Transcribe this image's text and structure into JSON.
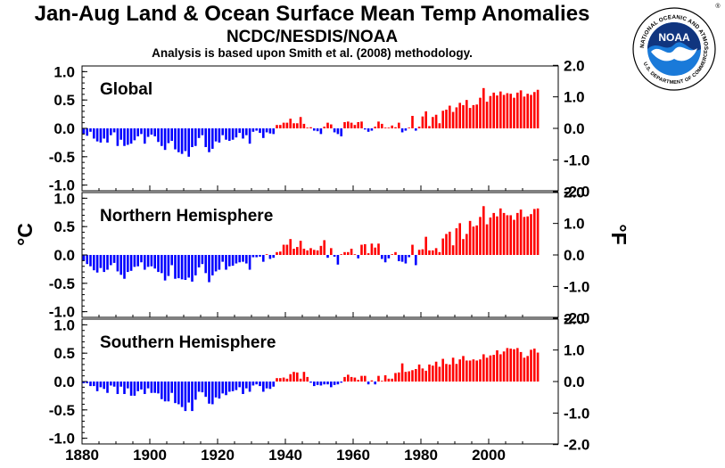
{
  "header": {
    "title": "Jan-Aug Land & Ocean Surface Mean Temp Anomalies",
    "subtitle": "NCDC/NESDIS/NOAA",
    "note": "Analysis is based upon Smith et al. (2008) methodology."
  },
  "logo": {
    "text": "NOAA",
    "ring_text": "NATIONAL OCEANIC AND ATMOSPHERIC ADMINISTRATION",
    "bottom_text": "U.S. DEPARTMENT OF COMMERCE",
    "registered": "®"
  },
  "colors": {
    "positive": "#ff0000",
    "negative": "#0000ff",
    "logo_blue": "#1a7ad9",
    "logo_navy": "#10357f"
  },
  "chart_data": [
    {
      "type": "bar",
      "panel": "Global",
      "ylabel_left": "°C",
      "ylabel_right": "°F",
      "ylim": [
        -1.1,
        1.1
      ],
      "yticks_c": [
        "1.0",
        "0.5",
        "0.0",
        "-0.5",
        "-1.0"
      ],
      "yticks_f": [
        "2.0",
        "1.0",
        "0.0",
        "-1.0",
        "-2.0"
      ],
      "xticks": [
        "1880",
        "1900",
        "1920",
        "1940",
        "1960",
        "1980",
        "2000"
      ],
      "x_start": 1880,
      "x_end": 2014,
      "values": [
        -0.1,
        -0.13,
        -0.06,
        -0.18,
        -0.23,
        -0.25,
        -0.18,
        -0.25,
        -0.12,
        -0.07,
        -0.31,
        -0.2,
        -0.31,
        -0.29,
        -0.27,
        -0.21,
        -0.14,
        -0.1,
        -0.27,
        -0.15,
        -0.11,
        -0.14,
        -0.24,
        -0.31,
        -0.38,
        -0.26,
        -0.22,
        -0.37,
        -0.42,
        -0.45,
        -0.4,
        -0.5,
        -0.33,
        -0.31,
        -0.17,
        -0.12,
        -0.33,
        -0.42,
        -0.36,
        -0.23,
        -0.25,
        -0.12,
        -0.2,
        -0.22,
        -0.2,
        -0.16,
        -0.08,
        -0.18,
        -0.12,
        -0.27,
        -0.06,
        -0.04,
        -0.08,
        -0.17,
        -0.07,
        -0.09,
        -0.1,
        0.06,
        0.06,
        0.1,
        0.1,
        0.17,
        0.09,
        0.09,
        0.2,
        0.08,
        0.0,
        0.02,
        -0.04,
        -0.05,
        -0.1,
        0.03,
        0.1,
        0.07,
        -0.07,
        -0.1,
        -0.14,
        0.11,
        0.12,
        0.1,
        0.06,
        0.11,
        0.12,
        -0.02,
        -0.06,
        -0.04,
        0.03,
        0.12,
        0.08,
        0.0,
        0.0,
        0.05,
        0.02,
        0.1,
        -0.07,
        -0.04,
        0.0,
        0.22,
        -0.04,
        0.03,
        0.21,
        0.3,
        0.04,
        0.2,
        0.24,
        0.09,
        0.31,
        0.33,
        0.4,
        0.29,
        0.37,
        0.45,
        0.41,
        0.5,
        0.36,
        0.41,
        0.42,
        0.54,
        0.71,
        0.47,
        0.57,
        0.63,
        0.58,
        0.65,
        0.59,
        0.62,
        0.61,
        0.54,
        0.63,
        0.67,
        0.56,
        0.61,
        0.59,
        0.64,
        0.68
      ]
    },
    {
      "type": "bar",
      "panel": "Northern Hemisphere",
      "ylabel_left": "°C",
      "ylabel_right": "°F",
      "ylim": [
        -1.1,
        1.1
      ],
      "yticks_c": [
        "1.0",
        "0.5",
        "0.0",
        "-0.5",
        "-1.0"
      ],
      "yticks_f": [
        "2.0",
        "1.0",
        "0.0",
        "-1.0",
        "-2.0"
      ],
      "xticks": [
        "1880",
        "1900",
        "1920",
        "1940",
        "1960",
        "1980",
        "2000"
      ],
      "x_start": 1880,
      "x_end": 2014,
      "values": [
        -0.1,
        -0.16,
        -0.2,
        -0.27,
        -0.31,
        -0.23,
        -0.3,
        -0.26,
        -0.18,
        -0.14,
        -0.29,
        -0.35,
        -0.42,
        -0.3,
        -0.28,
        -0.21,
        -0.2,
        -0.13,
        -0.26,
        -0.21,
        -0.2,
        -0.24,
        -0.3,
        -0.32,
        -0.45,
        -0.37,
        -0.18,
        -0.42,
        -0.41,
        -0.43,
        -0.44,
        -0.4,
        -0.47,
        -0.36,
        -0.22,
        -0.16,
        -0.32,
        -0.48,
        -0.36,
        -0.29,
        -0.26,
        -0.12,
        -0.26,
        -0.2,
        -0.19,
        -0.15,
        -0.13,
        -0.12,
        -0.15,
        -0.26,
        -0.04,
        -0.04,
        -0.03,
        -0.12,
        0.0,
        -0.07,
        -0.05,
        0.05,
        0.06,
        0.18,
        0.18,
        0.28,
        0.11,
        0.14,
        0.25,
        0.11,
        0.08,
        0.12,
        0.09,
        0.08,
        0.16,
        0.26,
        -0.05,
        0.12,
        -0.03,
        -0.17,
        0.0,
        0.05,
        0.05,
        0.11,
        0.0,
        -0.06,
        0.18,
        0.19,
        0.03,
        0.2,
        0.13,
        0.2,
        -0.07,
        -0.13,
        -0.06,
        0.01,
        0.05,
        -0.11,
        -0.12,
        -0.15,
        -0.04,
        0.18,
        -0.18,
        0.09,
        0.1,
        0.32,
        0.08,
        0.08,
        0.12,
        0.05,
        0.29,
        0.37,
        0.41,
        0.17,
        0.47,
        0.56,
        0.28,
        0.37,
        0.6,
        0.5,
        0.52,
        0.67,
        0.86,
        0.54,
        0.66,
        0.74,
        0.68,
        0.82,
        0.74,
        0.7,
        0.7,
        0.62,
        0.74,
        0.8,
        0.67,
        0.68,
        0.72,
        0.81,
        0.82
      ]
    },
    {
      "type": "bar",
      "panel": "Southern Hemisphere",
      "ylabel_left": "°C",
      "ylabel_right": "°F",
      "ylim": [
        -1.1,
        1.1
      ],
      "yticks_c": [
        "1.0",
        "0.5",
        "0.0",
        "-0.5",
        "-1.0"
      ],
      "yticks_f": [
        "2.0",
        "1.0",
        "0.0",
        "-1.0",
        "-2.0"
      ],
      "xticks": [
        "1880",
        "1900",
        "1920",
        "1940",
        "1960",
        "1980",
        "2000"
      ],
      "x_start": 1880,
      "x_end": 2014,
      "values": [
        -0.03,
        -0.03,
        -0.08,
        -0.08,
        -0.17,
        -0.1,
        -0.13,
        -0.2,
        -0.07,
        -0.09,
        -0.22,
        -0.09,
        -0.22,
        -0.12,
        -0.25,
        -0.25,
        -0.17,
        -0.14,
        -0.22,
        -0.12,
        -0.2,
        -0.2,
        -0.21,
        -0.31,
        -0.35,
        -0.35,
        -0.2,
        -0.38,
        -0.4,
        -0.45,
        -0.52,
        -0.37,
        -0.52,
        -0.32,
        -0.18,
        -0.19,
        -0.27,
        -0.39,
        -0.4,
        -0.28,
        -0.3,
        -0.21,
        -0.24,
        -0.18,
        -0.17,
        -0.15,
        -0.1,
        -0.22,
        -0.12,
        -0.18,
        -0.07,
        -0.05,
        -0.08,
        -0.18,
        -0.12,
        -0.13,
        -0.09,
        0.06,
        0.06,
        0.07,
        0.05,
        0.13,
        0.17,
        0.16,
        0.05,
        0.17,
        0.08,
        -0.02,
        -0.08,
        -0.06,
        -0.07,
        -0.05,
        -0.05,
        -0.1,
        -0.06,
        -0.05,
        -0.02,
        0.08,
        0.12,
        0.08,
        0.07,
        0.03,
        0.1,
        0.1,
        -0.05,
        0.02,
        -0.05,
        0.1,
        0.01,
        0.11,
        0.05,
        0.05,
        0.15,
        0.16,
        0.32,
        0.17,
        0.18,
        0.2,
        0.22,
        0.3,
        0.23,
        0.19,
        0.3,
        0.28,
        0.35,
        0.26,
        0.4,
        0.31,
        0.3,
        0.42,
        0.31,
        0.39,
        0.45,
        0.37,
        0.37,
        0.39,
        0.37,
        0.39,
        0.48,
        0.42,
        0.46,
        0.47,
        0.55,
        0.48,
        0.53,
        0.59,
        0.58,
        0.57,
        0.59,
        0.52,
        0.42,
        0.45,
        0.56,
        0.58,
        0.51
      ]
    }
  ]
}
